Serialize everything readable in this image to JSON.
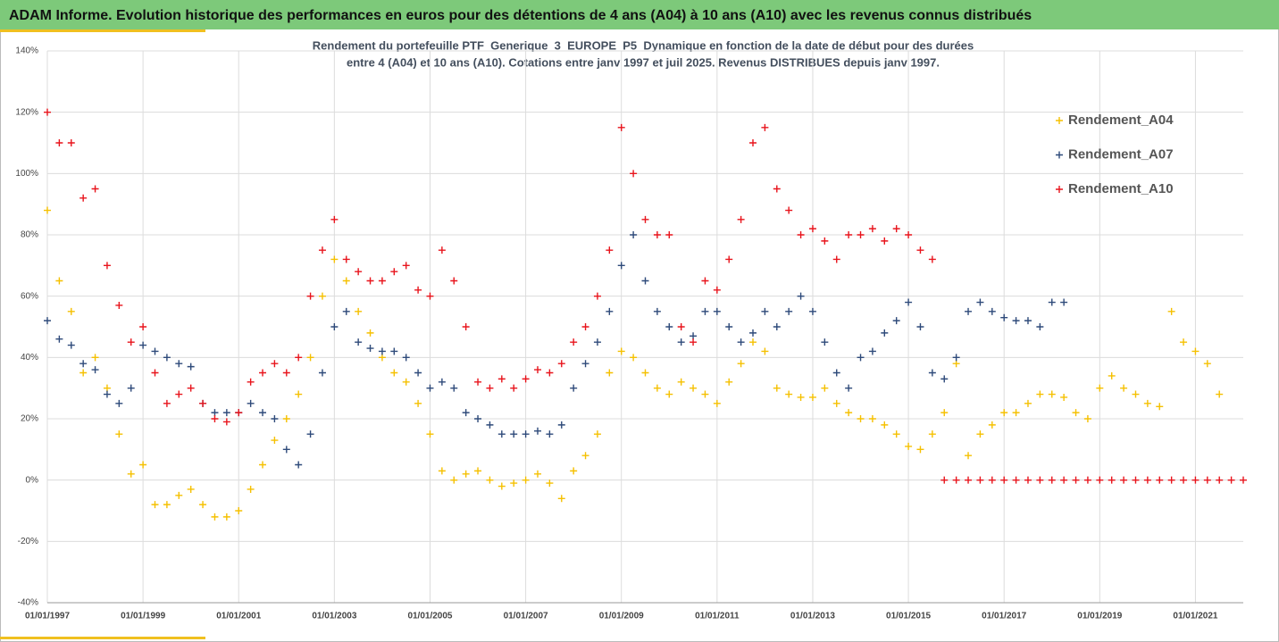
{
  "header": "ADAM Informe. Evolution historique des performances en euros pour des détentions de 4 ans (A04) à 10 ans (A10) avec les revenus connus distribués",
  "chart_data": {
    "type": "scatter",
    "title": [
      "Rendement du portefeuille PTF_Generique_3_EUROPE_P5_Dynamique  en fonction de la date de début pour des durées",
      "entre 4 (A04) et 10 ans (A10). Cotations entre janv 1997 et juil 2025. Revenus DISTRIBUES depuis janv 1997."
    ],
    "x": [
      1997,
      1997.25,
      1997.5,
      1997.75,
      1998,
      1998.25,
      1998.5,
      1998.75,
      1999,
      1999.25,
      1999.5,
      1999.75,
      2000,
      2000.25,
      2000.5,
      2000.75,
      2001,
      2001.25,
      2001.5,
      2001.75,
      2002,
      2002.25,
      2002.5,
      2002.75,
      2003,
      2003.25,
      2003.5,
      2003.75,
      2004,
      2004.25,
      2004.5,
      2004.75,
      2005,
      2005.25,
      2005.5,
      2005.75,
      2006,
      2006.25,
      2006.5,
      2006.75,
      2007,
      2007.25,
      2007.5,
      2007.75,
      2008,
      2008.25,
      2008.5,
      2008.75,
      2009,
      2009.25,
      2009.5,
      2009.75,
      2010,
      2010.25,
      2010.5,
      2010.75,
      2011,
      2011.25,
      2011.5,
      2011.75,
      2012,
      2012.25,
      2012.5,
      2012.75,
      2013,
      2013.25,
      2013.5,
      2013.75,
      2014,
      2014.25,
      2014.5,
      2014.75,
      2015,
      2015.25,
      2015.5,
      2015.75,
      2016,
      2016.25,
      2016.5,
      2016.75,
      2017,
      2017.25,
      2017.5,
      2017.75,
      2018,
      2018.25,
      2018.5,
      2018.75,
      2019,
      2019.25,
      2019.5,
      2019.75,
      2020,
      2020.25,
      2020.5,
      2020.75,
      2021,
      2021.25,
      2021.5,
      2021.75,
      2022
    ],
    "series": [
      {
        "name": "Rendement_A04",
        "color": "#f5c000",
        "values": [
          88,
          65,
          55,
          35,
          40,
          30,
          15,
          2,
          5,
          -8,
          -8,
          -5,
          -3,
          -8,
          -12,
          -12,
          -10,
          -3,
          5,
          13,
          20,
          28,
          40,
          60,
          72,
          65,
          55,
          48,
          40,
          35,
          32,
          25,
          15,
          3,
          0,
          2,
          3,
          0,
          -2,
          -1,
          0,
          2,
          -1,
          -6,
          3,
          8,
          15,
          35,
          42,
          40,
          35,
          30,
          28,
          32,
          30,
          28,
          25,
          32,
          38,
          45,
          42,
          30,
          28,
          27,
          27,
          30,
          25,
          22,
          20,
          20,
          18,
          15,
          11,
          10,
          15,
          22,
          38,
          8,
          15,
          18,
          22,
          22,
          25,
          28,
          28,
          27,
          22,
          20,
          30,
          34,
          30,
          28,
          25,
          24,
          55,
          45,
          42,
          38,
          28,
          null,
          null
        ]
      },
      {
        "name": "Rendement_A07",
        "color": "#2e4a7a",
        "values": [
          52,
          46,
          44,
          38,
          36,
          28,
          25,
          30,
          44,
          42,
          40,
          38,
          37,
          25,
          22,
          22,
          22,
          25,
          22,
          20,
          10,
          5,
          15,
          35,
          50,
          55,
          45,
          43,
          42,
          42,
          40,
          35,
          30,
          32,
          30,
          22,
          20,
          18,
          15,
          15,
          15,
          16,
          15,
          18,
          30,
          38,
          45,
          55,
          70,
          80,
          65,
          55,
          50,
          45,
          47,
          55,
          55,
          50,
          45,
          48,
          55,
          50,
          55,
          60,
          55,
          45,
          35,
          30,
          40,
          42,
          48,
          52,
          58,
          50,
          35,
          33,
          40,
          55,
          58,
          55,
          53,
          52,
          52,
          50,
          58,
          58,
          null,
          null,
          null,
          null,
          null,
          null,
          null,
          null,
          null,
          null,
          null,
          null,
          null,
          null,
          null
        ]
      },
      {
        "name": "Rendement_A10",
        "color": "#e8141c",
        "values": [
          120,
          110,
          110,
          92,
          95,
          70,
          57,
          45,
          50,
          35,
          25,
          28,
          30,
          25,
          20,
          19,
          22,
          32,
          35,
          38,
          35,
          40,
          60,
          75,
          85,
          72,
          68,
          65,
          65,
          68,
          70,
          62,
          60,
          75,
          65,
          50,
          32,
          30,
          33,
          30,
          33,
          36,
          35,
          38,
          45,
          50,
          60,
          75,
          115,
          100,
          85,
          80,
          80,
          50,
          45,
          65,
          62,
          72,
          85,
          110,
          115,
          95,
          88,
          80,
          82,
          78,
          72,
          80,
          80,
          82,
          78,
          82,
          80,
          75,
          72,
          0,
          0,
          0,
          0,
          0,
          0,
          0,
          0,
          0,
          0,
          0,
          0,
          0,
          0,
          0,
          0,
          0,
          0,
          0,
          0,
          0,
          0,
          0,
          0,
          0,
          0
        ]
      }
    ],
    "xlim": [
      1997,
      2022
    ],
    "xticks": [
      {
        "value": 1997,
        "label": "01/01/1997"
      },
      {
        "value": 1999,
        "label": "01/01/1999"
      },
      {
        "value": 2001,
        "label": "01/01/2001"
      },
      {
        "value": 2003,
        "label": "01/01/2003"
      },
      {
        "value": 2005,
        "label": "01/01/2005"
      },
      {
        "value": 2007,
        "label": "01/01/2007"
      },
      {
        "value": 2009,
        "label": "01/01/2009"
      },
      {
        "value": 2011,
        "label": "01/01/2011"
      },
      {
        "value": 2013,
        "label": "01/01/2013"
      },
      {
        "value": 2015,
        "label": "01/01/2015"
      },
      {
        "value": 2017,
        "label": "01/01/2017"
      },
      {
        "value": 2019,
        "label": "01/01/2019"
      },
      {
        "value": 2021,
        "label": "01/01/2021"
      }
    ],
    "ylim": [
      -40,
      140
    ],
    "yticks": [
      {
        "value": -40,
        "label": "-40%"
      },
      {
        "value": -20,
        "label": "-20%"
      },
      {
        "value": 0,
        "label": "0%"
      },
      {
        "value": 20,
        "label": "20%"
      },
      {
        "value": 40,
        "label": "40%"
      },
      {
        "value": 60,
        "label": "60%"
      },
      {
        "value": 80,
        "label": "80%"
      },
      {
        "value": 100,
        "label": "100%"
      },
      {
        "value": 120,
        "label": "120%"
      },
      {
        "value": 140,
        "label": "140%"
      }
    ],
    "grid": true,
    "legend": "upper right"
  }
}
